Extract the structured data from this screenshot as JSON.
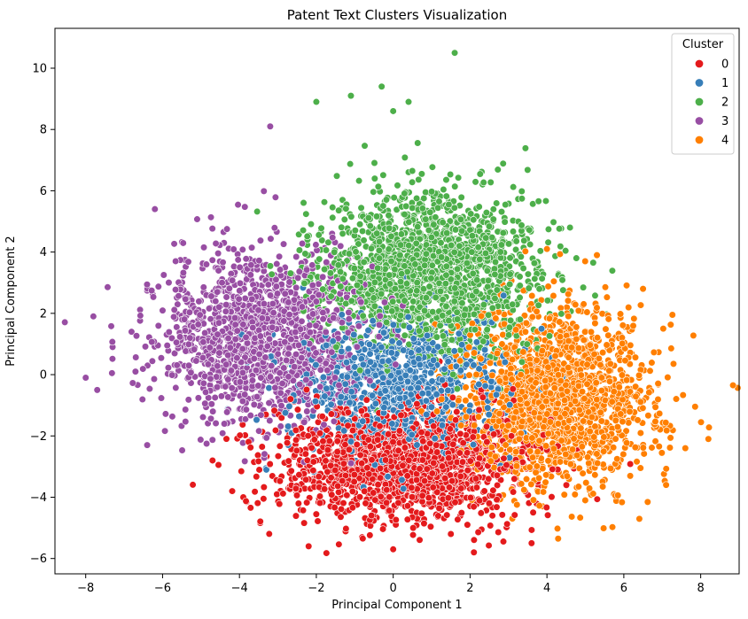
{
  "chart_data": {
    "type": "scatter",
    "title": "Patent Text Clusters Visualization",
    "xlabel": "Principal Component 1",
    "ylabel": "Principal Component 2",
    "xlim": [
      -8.8,
      9.0
    ],
    "ylim": [
      -6.5,
      11.3
    ],
    "xticks": [
      -8,
      -6,
      -4,
      -2,
      0,
      2,
      4,
      6,
      8
    ],
    "yticks": [
      -6,
      -4,
      -2,
      0,
      2,
      4,
      6,
      8,
      10
    ],
    "grid": false,
    "legend": {
      "title": "Cluster",
      "placement": "top-right"
    },
    "series": [
      {
        "name": "0",
        "color": "#e41a1c",
        "center": [
          0.2,
          -2.8
        ],
        "spread": [
          1.6,
          0.95
        ],
        "count": 1700,
        "sample_points": [
          [
            -2.2,
            -5.6
          ],
          [
            0.0,
            -5.7
          ],
          [
            2.1,
            -5.8
          ],
          [
            3.6,
            -5.5
          ],
          [
            -4.7,
            -2.8
          ],
          [
            -3.9,
            -4.0
          ],
          [
            1.5,
            -5.2
          ]
        ]
      },
      {
        "name": "1",
        "color": "#377eb8",
        "center": [
          0.1,
          -0.4
        ],
        "spread": [
          1.3,
          1.2
        ],
        "count": 900,
        "sample_points": [
          [
            -3.3,
            -3.1
          ],
          [
            2.9,
            -3.0
          ],
          [
            -1.0,
            1.9
          ],
          [
            1.8,
            1.0
          ],
          [
            0.3,
            3.2
          ]
        ]
      },
      {
        "name": "2",
        "color": "#4daf4a",
        "center": [
          0.9,
          3.4
        ],
        "spread": [
          1.5,
          1.3
        ],
        "count": 1700,
        "sample_points": [
          [
            1.6,
            10.5
          ],
          [
            -0.3,
            9.4
          ],
          [
            -1.1,
            9.1
          ],
          [
            -2.0,
            8.9
          ],
          [
            0.4,
            8.9
          ],
          [
            0.0,
            8.6
          ],
          [
            4.6,
            4.8
          ]
        ]
      },
      {
        "name": "3",
        "color": "#984ea3",
        "center": [
          -3.5,
          1.2
        ],
        "spread": [
          1.3,
          1.4
        ],
        "count": 1400,
        "sample_points": [
          [
            -8.0,
            -0.1
          ],
          [
            -7.7,
            -0.5
          ],
          [
            -7.3,
            0.9
          ],
          [
            -7.8,
            1.9
          ],
          [
            -6.4,
            -2.3
          ],
          [
            -3.2,
            8.1
          ],
          [
            -6.2,
            5.4
          ]
        ]
      },
      {
        "name": "4",
        "color": "#ff7f00",
        "center": [
          4.3,
          -0.8
        ],
        "spread": [
          1.2,
          1.4
        ],
        "count": 1700,
        "sample_points": [
          [
            8.2,
            -2.1
          ],
          [
            7.6,
            -2.4
          ],
          [
            7.1,
            -3.6
          ],
          [
            6.5,
            2.8
          ],
          [
            5.3,
            3.9
          ],
          [
            4.0,
            4.1
          ],
          [
            3.1,
            -4.7
          ]
        ]
      }
    ]
  }
}
